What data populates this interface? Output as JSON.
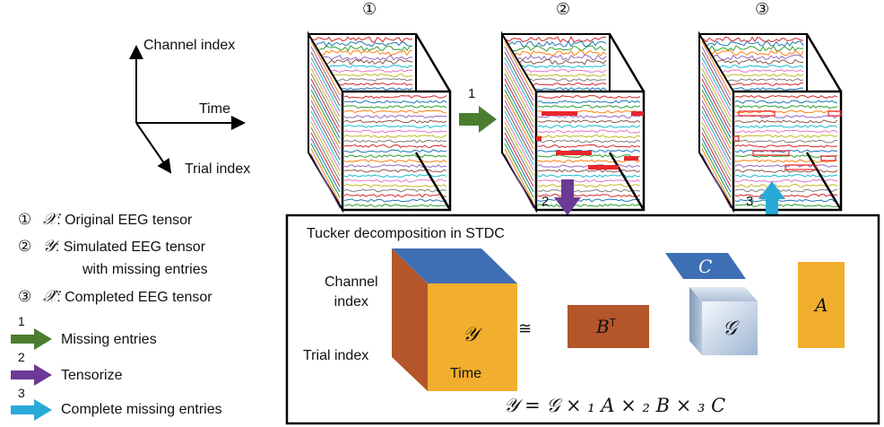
{
  "axes": {
    "channel": "Channel index",
    "time": "Time",
    "trial": "Trial index"
  },
  "cubes": [
    {
      "number": "①"
    },
    {
      "number": "②"
    },
    {
      "number": "③"
    }
  ],
  "step_arrows": {
    "step1": "1",
    "step2": "2",
    "step3": "3"
  },
  "legend": {
    "items": [
      {
        "number": "①",
        "symbol": "𝒳",
        "text": ": Original EEG tensor"
      },
      {
        "number": "②",
        "symbol": "𝒴",
        "text": ":  Simulated EEG tensor"
      },
      {
        "number": "③",
        "symbol": "𝒳̂",
        "text": ": Completed EEG tensor"
      }
    ],
    "line2_continued": "with missing entries",
    "arrows": [
      {
        "num": "1",
        "label": "Missing entries",
        "color": "#4a7d2f"
      },
      {
        "num": "2",
        "label": "Tensorize",
        "color": "#6b3a96"
      },
      {
        "num": "3",
        "label": "Complete missing entries",
        "color": "#29a9d8"
      }
    ]
  },
  "tucker": {
    "title": "Tucker decomposition in STDC",
    "channel_label": "Channel\nindex",
    "trial_label": "Trial index",
    "time_label": "Time",
    "cube_symbol": "𝒴",
    "approx": "≅",
    "b_label": "B",
    "b_sup": "T",
    "c_label": "C",
    "g_label": "𝒢",
    "a_label": "A",
    "equation": "𝒴 =  𝒢 × ₁ A × ₂ B × ₃ C"
  },
  "colors": {
    "cube_front": "#f2ae2e",
    "cube_side": "#b4552a",
    "cube_top": "#3e6fb5",
    "b_block": "#b4552a",
    "a_block": "#f2ae2e",
    "c_block": "#3e6fb5",
    "missing": "#e8262b"
  }
}
